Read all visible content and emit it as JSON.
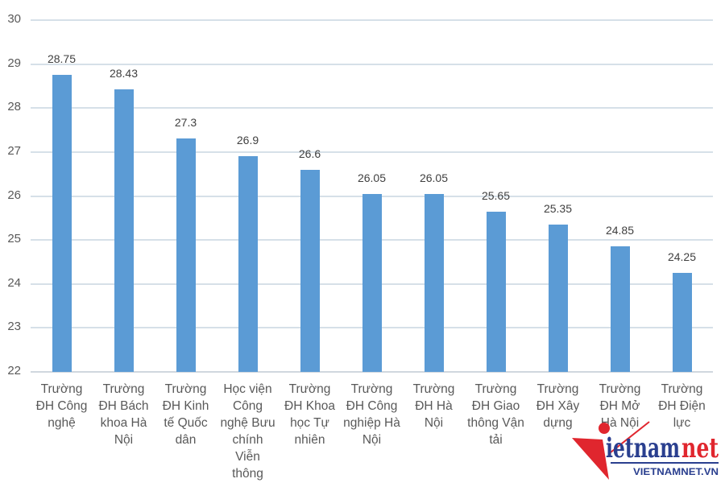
{
  "chart_data": {
    "type": "bar",
    "title": "",
    "xlabel": "",
    "ylabel": "",
    "ylim": [
      22,
      30
    ],
    "yticks": [
      22,
      23,
      24,
      25,
      26,
      27,
      28,
      29,
      30
    ],
    "grid": true,
    "legend": "none",
    "bar_color": "#5b9bd5",
    "categories": [
      "Trường ĐH Công nghệ",
      "Trường ĐH Bách khoa Hà Nội",
      "Trường ĐH Kinh tế Quốc dân",
      "Học viện Công nghệ Bưu chính Viễn thông",
      "Trường ĐH Khoa học Tự nhiên",
      "Trường ĐH Công nghiệp Hà Nội",
      "Trường ĐH Hà Nội",
      "Trường ĐH Giao thông Vận tải",
      "Trường ĐH Xây dựng",
      "Trường ĐH Mở Hà Nội",
      "Trường ĐH Điện lực"
    ],
    "values": [
      28.75,
      28.43,
      27.3,
      26.9,
      26.6,
      26.05,
      26.05,
      25.65,
      25.35,
      24.85,
      24.25
    ],
    "data_labels": [
      "28.75",
      "28.43",
      "27.3",
      "26.9",
      "26.6",
      "26.05",
      "26.05",
      "25.65",
      "25.35",
      "24.85",
      "24.25"
    ]
  },
  "category_lines": [
    [
      "Trường",
      "ĐH Công",
      "nghệ"
    ],
    [
      "Trường",
      "ĐH Bách",
      "khoa Hà",
      "Nội"
    ],
    [
      "Trường",
      "ĐH Kinh",
      "tế Quốc",
      "dân"
    ],
    [
      "Học viện",
      "Công",
      "nghệ Bưu",
      "chính",
      "Viễn",
      "thông"
    ],
    [
      "Trường",
      "ĐH Khoa",
      "học Tự",
      "nhiên"
    ],
    [
      "Trường",
      "ĐH Công",
      "nghiệp Hà",
      "Nội"
    ],
    [
      "Trường",
      "ĐH Hà",
      "Nội"
    ],
    [
      "Trường",
      "ĐH Giao",
      "thông Vận",
      "tải"
    ],
    [
      "Trường",
      "ĐH Xây",
      "dựng"
    ],
    [
      "Trường",
      "ĐH Mở",
      "Hà Nội"
    ],
    [
      "Trường",
      "ĐH Điện",
      "lực"
    ]
  ],
  "watermark": {
    "brand": "vietnamnet",
    "brand_main": "ietnam",
    "brand_net": "net",
    "url": "VIETNAMNET.VN",
    "colors": {
      "red": "#e0262e",
      "blue": "#2a3f8f"
    }
  }
}
